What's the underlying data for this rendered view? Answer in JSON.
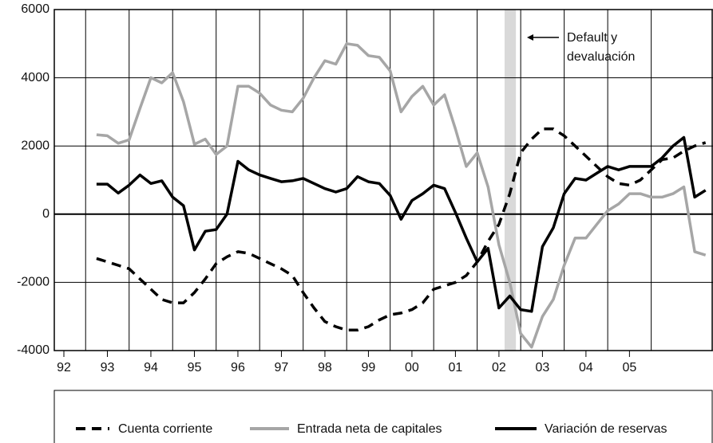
{
  "chart_data": {
    "type": "line",
    "x": [
      1992.75,
      1993,
      1993.25,
      1993.5,
      1993.75,
      1994,
      1994.25,
      1994.5,
      1994.75,
      1995,
      1995.25,
      1995.5,
      1995.75,
      1996,
      1996.25,
      1996.5,
      1996.75,
      1997,
      1997.25,
      1997.5,
      1997.75,
      1998,
      1998.25,
      1998.5,
      1998.75,
      1999,
      1999.25,
      1999.5,
      1999.75,
      2000,
      2000.25,
      2000.5,
      2000.75,
      2001,
      2001.25,
      2001.5,
      2001.75,
      2002,
      2002.25,
      2002.5,
      2002.75,
      2003,
      2003.25,
      2003.5,
      2003.75,
      2004,
      2004.25,
      2004.5,
      2004.75,
      2005,
      2005.25,
      2005.5,
      2005.75,
      2006,
      2006.25,
      2006.5,
      2006.75
    ],
    "series": [
      {
        "name": "Cuenta corriente",
        "color": "#000000",
        "dash": true,
        "values": [
          -1300,
          -1400,
          -1500,
          -1600,
          -1900,
          -2200,
          -2500,
          -2600,
          -2600,
          -2300,
          -1900,
          -1450,
          -1250,
          -1100,
          -1150,
          -1300,
          -1450,
          -1600,
          -1800,
          -2300,
          -2750,
          -3150,
          -3300,
          -3400,
          -3400,
          -3300,
          -3100,
          -2950,
          -2900,
          -2800,
          -2600,
          -2200,
          -2100,
          -2000,
          -1800,
          -1400,
          -800,
          -300,
          600,
          1800,
          2200,
          2500,
          2500,
          2300,
          2000,
          1700,
          1400,
          1100,
          900,
          850,
          1000,
          1300,
          1600,
          1650,
          1850,
          2000,
          2100
        ]
      },
      {
        "name": "Entrada neta de capitales",
        "color": "#a6a6a6",
        "dash": false,
        "values": [
          2330,
          2300,
          2080,
          2180,
          3100,
          4000,
          3850,
          4150,
          3300,
          2050,
          2200,
          1750,
          2000,
          3750,
          3750,
          3550,
          3200,
          3050,
          3000,
          3400,
          4000,
          4500,
          4400,
          5000,
          4950,
          4650,
          4600,
          4200,
          3000,
          3450,
          3750,
          3200,
          3500,
          2500,
          1400,
          1800,
          800,
          -900,
          -2000,
          -3500,
          -3900,
          -3000,
          -2500,
          -1500,
          -700,
          -700,
          -300,
          100,
          300,
          600,
          600,
          500,
          500,
          600,
          800,
          -1100,
          -1200
        ]
      },
      {
        "name": "Variación de reservas",
        "color": "#000000",
        "dash": false,
        "values": [
          880,
          880,
          620,
          850,
          1150,
          900,
          980,
          500,
          250,
          -1050,
          -500,
          -450,
          0,
          1550,
          1300,
          1150,
          1050,
          950,
          980,
          1050,
          900,
          750,
          650,
          750,
          1100,
          950,
          900,
          550,
          -150,
          400,
          600,
          850,
          750,
          50,
          -700,
          -1400,
          -1000,
          -2750,
          -2400,
          -2800,
          -2850,
          -950,
          -400,
          600,
          1050,
          1000,
          1200,
          1400,
          1300,
          1400,
          1400,
          1400,
          1650,
          2000,
          2250,
          500,
          700
        ]
      }
    ],
    "xlim": [
      1991.78,
      2006.92
    ],
    "xticks": [
      {
        "value": 1992,
        "label": "92"
      },
      {
        "value": 1993,
        "label": "93"
      },
      {
        "value": 1994,
        "label": "94"
      },
      {
        "value": 1995,
        "label": "95"
      },
      {
        "value": 1996,
        "label": "96"
      },
      {
        "value": 1997,
        "label": "97"
      },
      {
        "value": 1998,
        "label": "98"
      },
      {
        "value": 1999,
        "label": "99"
      },
      {
        "value": 2000,
        "label": "00"
      },
      {
        "value": 2001,
        "label": "01"
      },
      {
        "value": 2002,
        "label": "02"
      },
      {
        "value": 2003,
        "label": "03"
      },
      {
        "value": 2004,
        "label": "04"
      },
      {
        "value": 2005,
        "label": "05"
      }
    ],
    "ylim": [
      -4000,
      6000
    ],
    "yticks": [
      -4000,
      -2000,
      0,
      2000,
      4000,
      6000
    ],
    "grid": true,
    "shade": [
      2002.13,
      2002.39
    ],
    "annotation": [
      "Default y",
      "devaluación"
    ],
    "legend": "bottom"
  }
}
